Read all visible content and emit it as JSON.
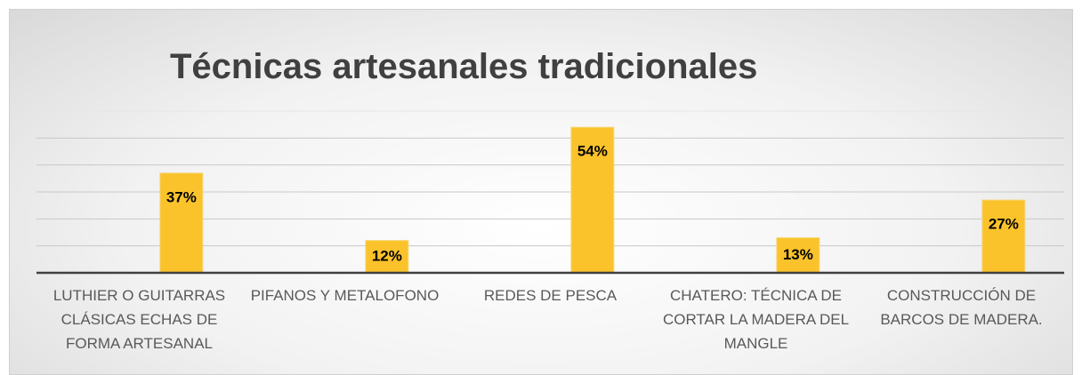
{
  "chart_data": {
    "type": "bar",
    "title": "Técnicas artesanales tradicionales",
    "categories": [
      "LUTHIER O GUITARRAS CLÁSICAS ECHAS DE FORMA ARTESANAL",
      "PIFANOS Y METALOFONO",
      "REDES DE PESCA",
      "CHATERO: TÉCNICA DE CORTAR LA MADERA DEL MANGLE",
      "CONSTRUCCIÓN DE BARCOS DE MADERA."
    ],
    "values": [
      37,
      12,
      54,
      13,
      27
    ],
    "value_labels": [
      "37%",
      "12%",
      "54%",
      "13%",
      "27%"
    ],
    "color": "#fbc32b",
    "ylim": [
      0,
      60
    ],
    "yticks": [
      0,
      10,
      20,
      30,
      40,
      50,
      60
    ],
    "grid": true
  }
}
